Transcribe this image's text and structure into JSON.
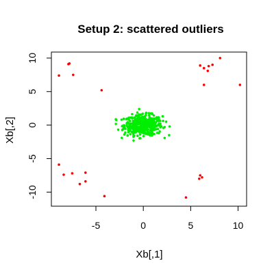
{
  "chart_data": {
    "type": "scatter",
    "title": "Setup 2: scattered outliers",
    "xlabel": "Xb[,1]",
    "ylabel": "Xb[,2]",
    "xlim": [
      -9.7,
      10.9
    ],
    "ylim": [
      -12.1,
      10.9
    ],
    "xticks": [
      -5,
      0,
      5,
      10
    ],
    "yticks": [
      -10,
      -5,
      0,
      5,
      10
    ],
    "grid": false,
    "legend": "none",
    "series": [
      {
        "color": "#00ee00",
        "cluster": {
          "center": [
            0,
            0
          ],
          "sd": [
            1.0,
            0.75
          ],
          "count": 500,
          "xrange": [
            -2.9,
            2.9
          ],
          "yrange": [
            -2.3,
            2.4
          ]
        }
      },
      {
        "color": "#ff0000",
        "points": [
          [
            -8.9,
            7.4
          ],
          [
            -7.9,
            9.1
          ],
          [
            -7.8,
            9.2
          ],
          [
            -7.4,
            7.5
          ],
          [
            -4.4,
            5.2
          ],
          [
            6.0,
            8.9
          ],
          [
            6.4,
            8.5
          ],
          [
            6.8,
            8.1
          ],
          [
            6.9,
            8.8
          ],
          [
            7.3,
            9.0
          ],
          [
            8.1,
            10.0
          ],
          [
            10.2,
            6.0
          ],
          [
            6.4,
            6.0
          ],
          [
            -8.9,
            -5.9
          ],
          [
            -8.4,
            -7.4
          ],
          [
            -7.5,
            -7.2
          ],
          [
            -6.7,
            -8.8
          ],
          [
            -6.1,
            -7.1
          ],
          [
            -6.1,
            -8.4
          ],
          [
            -4.1,
            -10.6
          ],
          [
            4.5,
            -10.8
          ],
          [
            5.9,
            -8.0
          ],
          [
            6.0,
            -7.5
          ],
          [
            6.2,
            -7.8
          ]
        ]
      }
    ]
  }
}
